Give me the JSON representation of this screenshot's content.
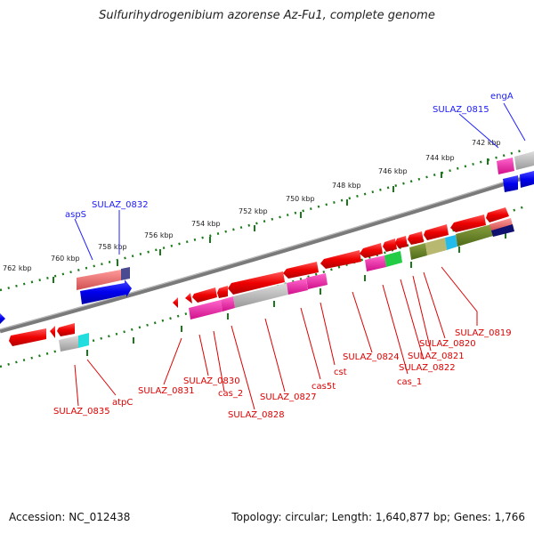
{
  "title": "Sulfurihydrogenibium azorense Az-Fu1, complete genome",
  "footer": {
    "accession": "Accession: NC_012438",
    "topology": "Topology: circular; Length: 1,640,877 bp; Genes: 1,766"
  },
  "kbp_ticks": [
    "742 kbp",
    "744 kbp",
    "746 kbp",
    "748 kbp",
    "750 kbp",
    "752 kbp",
    "754 kbp",
    "756 kbp",
    "758 kbp",
    "760 kbp",
    "762 kbp"
  ],
  "blue_labels": [
    "engA",
    "SULAZ_0815",
    "SULAZ_0832",
    "aspS"
  ],
  "red_labels": [
    "SULAZ_0819",
    "SULAZ_0820",
    "SULAZ_0821",
    "SULAZ_0822",
    "cas_1",
    "SULAZ_0824",
    "cst",
    "cas5t",
    "SULAZ_0827",
    "SULAZ_0828",
    "cas_2",
    "SULAZ_0830",
    "SULAZ_0831",
    "atpC",
    "SULAZ_0835"
  ],
  "colors": {
    "forward_strand": "#0000ee",
    "reverse_strand": "#ee0000",
    "backbone": "#888888",
    "tick_dots": "#1a7a1a"
  }
}
